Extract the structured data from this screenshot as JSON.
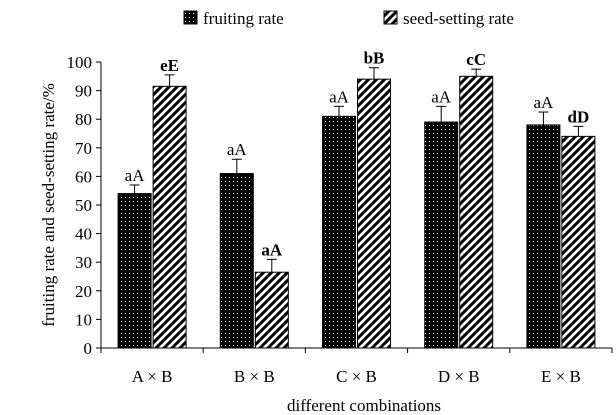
{
  "chart_data": {
    "type": "bar",
    "xlabel": "different combinations",
    "ylabel": "fruiting rate and seed-setting rate/%",
    "ylim": [
      0,
      100
    ],
    "yticks": [
      "0",
      "10",
      "20",
      "30",
      "40",
      "50",
      "60",
      "70",
      "80",
      "90",
      "100"
    ],
    "categories": [
      "A × B",
      "B × B",
      "C × B",
      "D × B",
      "E × B"
    ],
    "legend_position": "top",
    "series": [
      {
        "name": "fruiting rate",
        "pattern": "dotted-dark",
        "values": [
          54,
          61,
          81,
          79,
          78
        ],
        "errors": [
          3,
          5,
          3.5,
          5.5,
          4.5
        ],
        "labels": [
          "aA",
          "aA",
          "aA",
          "aA",
          "aA"
        ]
      },
      {
        "name": "seed-setting rate",
        "pattern": "diagonal-hatch",
        "values": [
          91.5,
          26.5,
          94,
          95,
          74
        ],
        "errors": [
          4,
          4.5,
          4,
          2.5,
          3.5
        ],
        "labels": [
          "eE",
          "aA",
          "bB",
          "cC",
          "dD"
        ]
      }
    ]
  }
}
